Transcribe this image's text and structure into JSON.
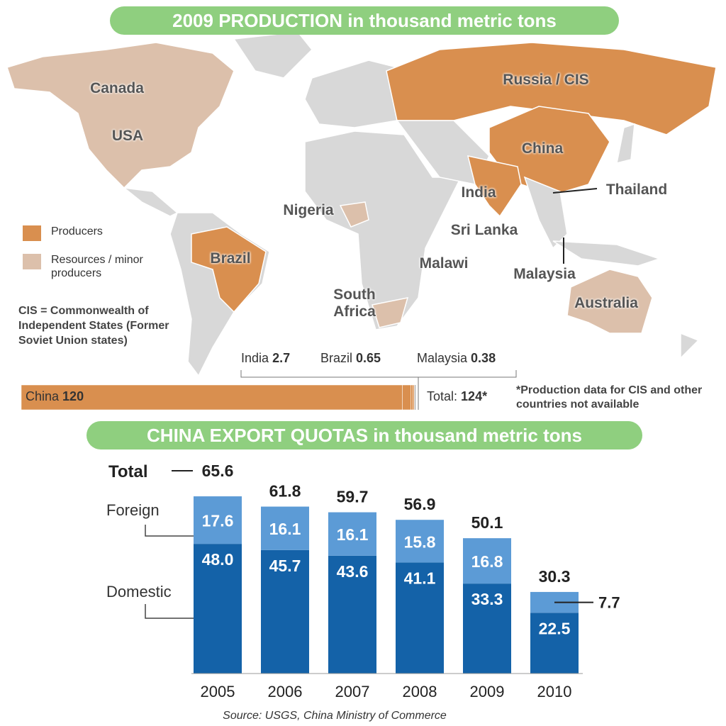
{
  "production": {
    "title": "2009 PRODUCTION in thousand metric tons",
    "legend": [
      {
        "label": "Producers",
        "color": "#d98f4f"
      },
      {
        "label": "Resources / minor producers",
        "color": "#dcc0ab"
      }
    ],
    "note": "CIS = Commonwealth of Independent States (Former Soviet Union states)",
    "map_labels": [
      "Canada",
      "USA",
      "Russia / CIS",
      "China",
      "India",
      "Thailand",
      "Nigeria",
      "Sri Lanka",
      "Malawi",
      "Brazil",
      "Malaysia",
      "South Africa",
      "Australia"
    ],
    "bar": {
      "categories": [
        "China",
        "India",
        "Brazil",
        "Malaysia"
      ],
      "values": [
        120,
        2.7,
        0.65,
        0.38
      ],
      "color": "#d98f4f",
      "total_label": "Total:",
      "total": 124,
      "total_value_label": "124*",
      "footnote": "*Production data for CIS and other countries not available"
    }
  },
  "chart_data": {
    "type": "stacked-bar",
    "title": "CHINA EXPORT QUOTAS in thousand metric tons",
    "categories": [
      "2005",
      "2006",
      "2007",
      "2008",
      "2009",
      "2010"
    ],
    "series": [
      {
        "name": "Domestic",
        "color": "#1462a8",
        "values": [
          48.0,
          45.7,
          43.6,
          41.1,
          33.3,
          22.5
        ],
        "value_labels": [
          "48.0",
          "45.7",
          "43.6",
          "41.1",
          "33.3",
          "22.5"
        ]
      },
      {
        "name": "Foreign",
        "color": "#5c9bd6",
        "values": [
          17.6,
          16.1,
          16.1,
          15.8,
          16.8,
          7.7
        ]
      }
    ],
    "totals": {
      "name": "Total",
      "values": [
        65.6,
        61.8,
        59.7,
        56.9,
        50.1,
        30.3
      ]
    },
    "source": "Source: USGS, China Ministry of Commerce"
  }
}
